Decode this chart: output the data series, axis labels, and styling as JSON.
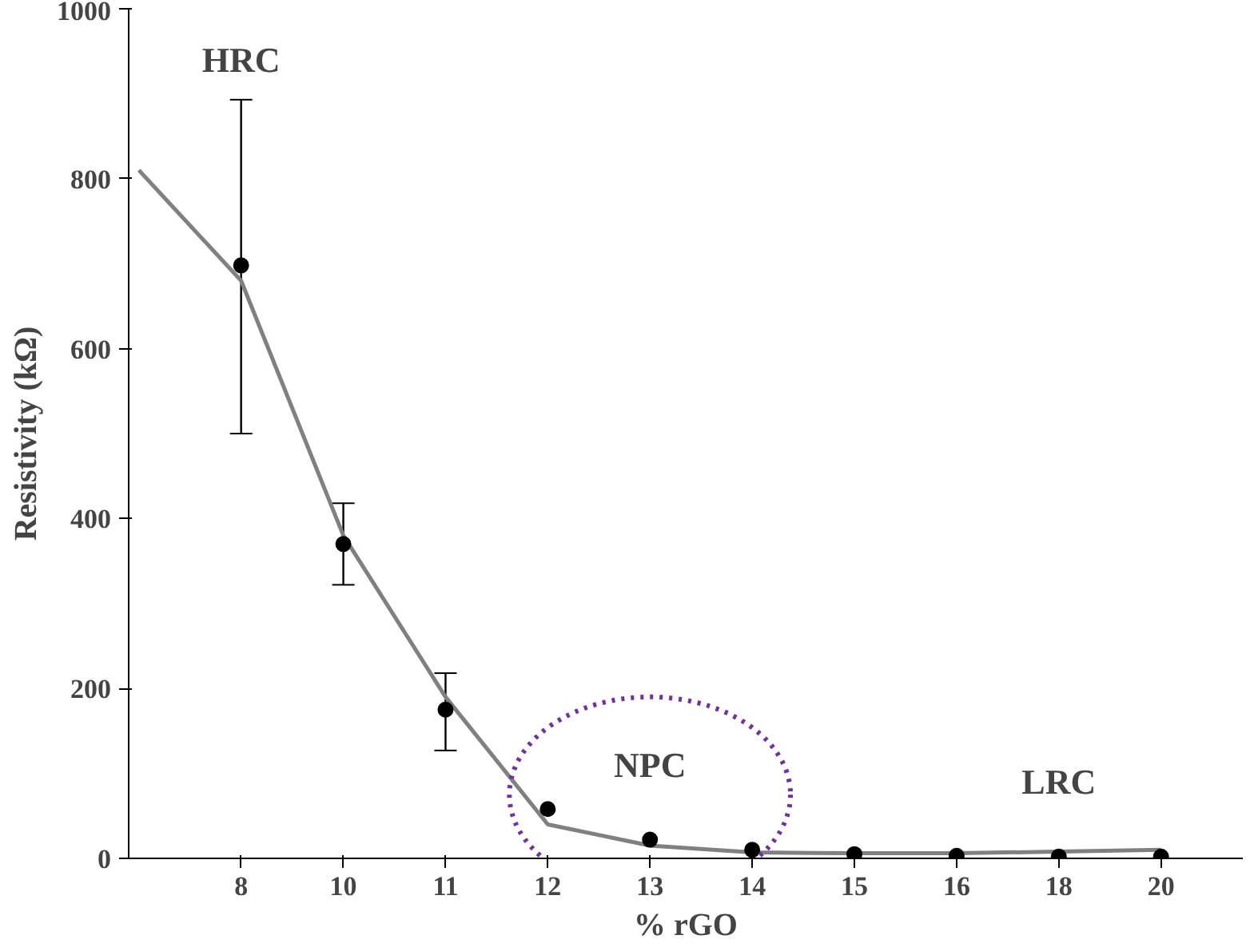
{
  "chart_data": {
    "type": "scatter",
    "xlabel": "% rGO",
    "ylabel": "Resistivity (kΩ)",
    "categories": [
      null,
      "8",
      "10",
      "11",
      "12",
      "13",
      "14",
      "15",
      "16",
      "18",
      "20"
    ],
    "ylim": [
      0,
      1000
    ],
    "yticks": [
      0,
      200,
      400,
      600,
      800,
      1000
    ],
    "grid": false,
    "series": [
      {
        "color": "#000000",
        "marker": "circle",
        "values": [
          null,
          698,
          370,
          175,
          58,
          22,
          10,
          5,
          3,
          2,
          2
        ],
        "errors": [
          null,
          [
            500,
            893
          ],
          [
            322,
            418
          ],
          [
            127,
            218
          ],
          null,
          null,
          null,
          null,
          null,
          null,
          null
        ]
      },
      {
        "type": "line",
        "color": "#808080",
        "line_style": "solid",
        "values": [
          810,
          680,
          380,
          190,
          40,
          15,
          7,
          6,
          6,
          8,
          10
        ]
      }
    ],
    "annotations": [
      "HRC",
      "NPC",
      "LRC"
    ]
  }
}
